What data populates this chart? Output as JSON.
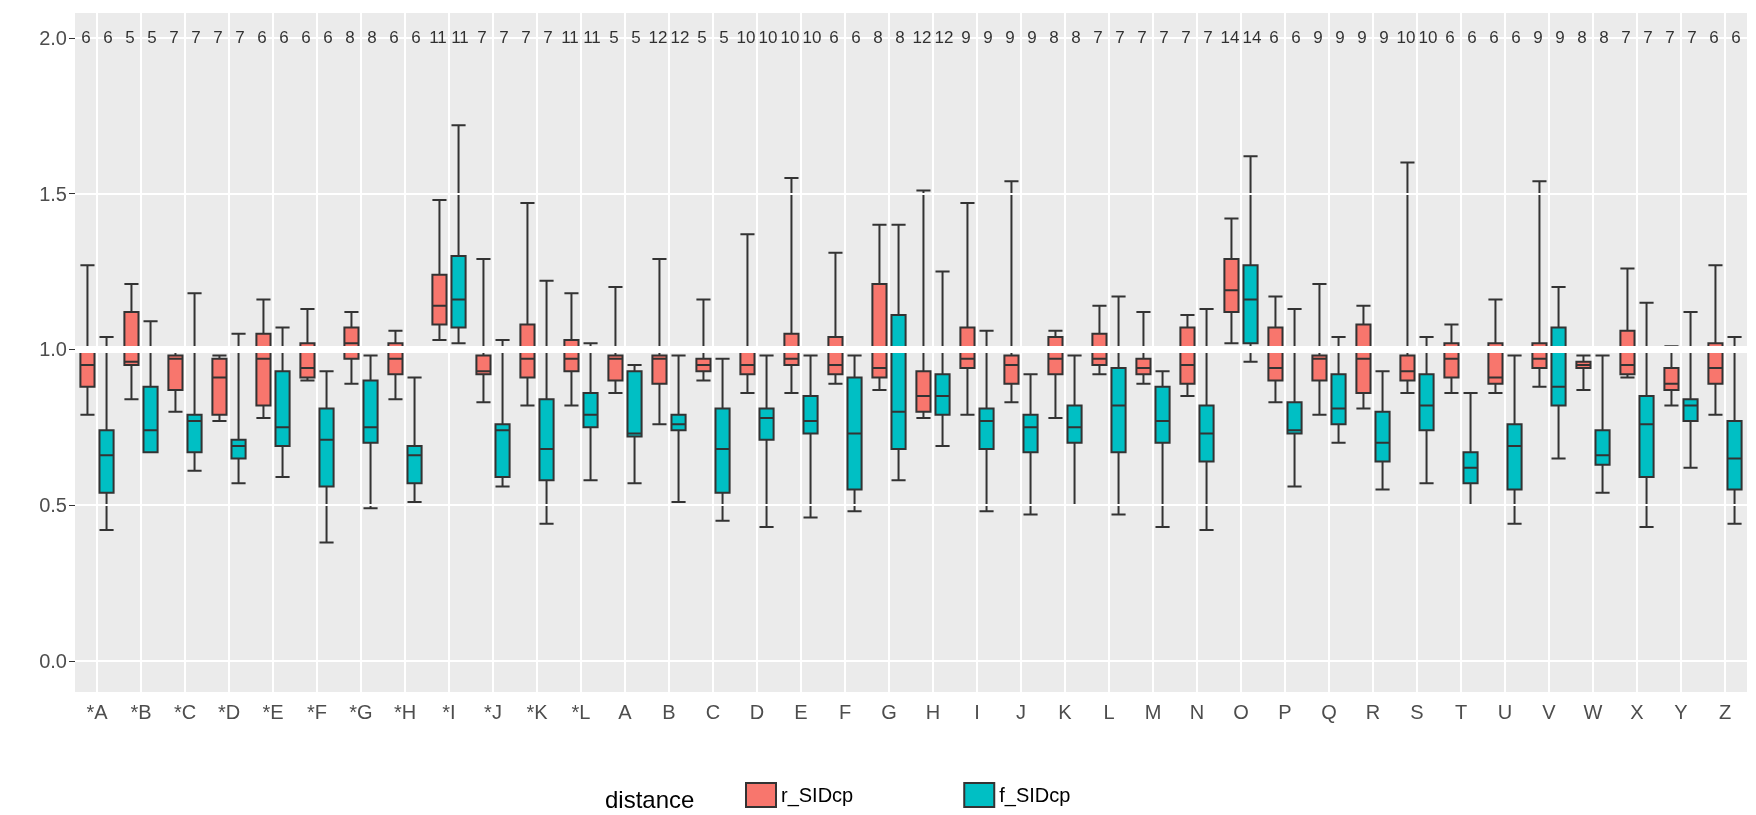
{
  "chart_data": {
    "type": "box",
    "categories": [
      "*A",
      "*B",
      "*C",
      "*D",
      "*E",
      "*F",
      "*G",
      "*H",
      "*I",
      "*J",
      "*K",
      "*L",
      "A",
      "B",
      "C",
      "D",
      "E",
      "F",
      "G",
      "H",
      "I",
      "J",
      "K",
      "L",
      "M",
      "N",
      "O",
      "P",
      "Q",
      "R",
      "S",
      "T",
      "U",
      "V",
      "W",
      "X",
      "Y",
      "Z"
    ],
    "ylim": [
      -0.1,
      2.08
    ],
    "yticks": [
      {
        "value": 0,
        "label": "0.0"
      },
      0.5,
      {
        "value": 1,
        "label": "1.0"
      },
      1.5,
      {
        "value": 2,
        "label": "2.0"
      }
    ],
    "grid": true,
    "legend": "bottom",
    "legend_title": "distance",
    "ref_lines": [
      {
        "axis": "y",
        "value": 1,
        "color": "#ffffff"
      }
    ],
    "series": [
      {
        "name": "r_SIDcp",
        "color": "#f8766d",
        "value_labels": [
          "6",
          "5",
          "7",
          "7",
          "6",
          "6",
          "8",
          "6",
          "11",
          "7",
          "7",
          "11",
          "5",
          "12",
          "5",
          "10",
          "10",
          "6",
          "8",
          "12",
          "9",
          "9",
          "8",
          "7",
          "7",
          "7",
          "14",
          "6",
          "9",
          "9",
          "10",
          "6",
          "6",
          "9",
          "8",
          "7",
          "7",
          "6"
        ],
        "boxes": [
          {
            "low": 0.79,
            "q1": 0.88,
            "median": 0.95,
            "q3": 1.0,
            "high": 1.27
          },
          {
            "low": 0.84,
            "q1": 0.95,
            "median": 0.96,
            "q3": 1.12,
            "high": 1.21
          },
          {
            "low": 0.8,
            "q1": 0.87,
            "median": 0.97,
            "q3": 0.98,
            "high": 1.0
          },
          {
            "low": 0.77,
            "q1": 0.79,
            "median": 0.91,
            "q3": 0.97,
            "high": 0.98
          },
          {
            "low": 0.78,
            "q1": 0.82,
            "median": 0.97,
            "q3": 1.05,
            "high": 1.16
          },
          {
            "low": 0.9,
            "q1": 0.91,
            "median": 0.94,
            "q3": 1.02,
            "high": 1.13
          },
          {
            "low": 0.89,
            "q1": 0.97,
            "median": 1.02,
            "q3": 1.07,
            "high": 1.12
          },
          {
            "low": 0.84,
            "q1": 0.92,
            "median": 0.97,
            "q3": 1.02,
            "high": 1.06
          },
          {
            "low": 1.03,
            "q1": 1.08,
            "median": 1.14,
            "q3": 1.24,
            "high": 1.48
          },
          {
            "low": 0.83,
            "q1": 0.92,
            "median": 0.93,
            "q3": 0.98,
            "high": 1.29
          },
          {
            "low": 0.82,
            "q1": 0.91,
            "median": 0.97,
            "q3": 1.08,
            "high": 1.47
          },
          {
            "low": 0.82,
            "q1": 0.93,
            "median": 0.97,
            "q3": 1.03,
            "high": 1.18
          },
          {
            "low": 0.86,
            "q1": 0.9,
            "median": 0.97,
            "q3": 0.98,
            "high": 1.2
          },
          {
            "low": 0.76,
            "q1": 0.89,
            "median": 0.97,
            "q3": 0.98,
            "high": 1.29
          },
          {
            "low": 0.9,
            "q1": 0.93,
            "median": 0.95,
            "q3": 0.97,
            "high": 1.16
          },
          {
            "low": 0.86,
            "q1": 0.92,
            "median": 0.95,
            "q3": 1.0,
            "high": 1.37
          },
          {
            "low": 0.86,
            "q1": 0.95,
            "median": 0.97,
            "q3": 1.05,
            "high": 1.55
          },
          {
            "low": 0.89,
            "q1": 0.92,
            "median": 0.95,
            "q3": 1.04,
            "high": 1.31
          },
          {
            "low": 0.87,
            "q1": 0.91,
            "median": 0.94,
            "q3": 1.21,
            "high": 1.4
          },
          {
            "low": 0.78,
            "q1": 0.8,
            "median": 0.85,
            "q3": 0.93,
            "high": 1.51
          },
          {
            "low": 0.79,
            "q1": 0.94,
            "median": 0.97,
            "q3": 1.07,
            "high": 1.47
          },
          {
            "low": 0.83,
            "q1": 0.89,
            "median": 0.95,
            "q3": 0.98,
            "high": 1.54
          },
          {
            "low": 0.78,
            "q1": 0.92,
            "median": 0.97,
            "q3": 1.04,
            "high": 1.06
          },
          {
            "low": 0.92,
            "q1": 0.95,
            "median": 0.97,
            "q3": 1.05,
            "high": 1.14
          },
          {
            "low": 0.89,
            "q1": 0.92,
            "median": 0.94,
            "q3": 0.97,
            "high": 1.12
          },
          {
            "low": 0.85,
            "q1": 0.89,
            "median": 0.95,
            "q3": 1.07,
            "high": 1.11
          },
          {
            "low": 1.02,
            "q1": 1.12,
            "median": 1.19,
            "q3": 1.29,
            "high": 1.42
          },
          {
            "low": 0.83,
            "q1": 0.9,
            "median": 0.94,
            "q3": 1.07,
            "high": 1.17
          },
          {
            "low": 0.79,
            "q1": 0.9,
            "median": 0.97,
            "q3": 0.98,
            "high": 1.21
          },
          {
            "low": 0.81,
            "q1": 0.86,
            "median": 0.97,
            "q3": 1.08,
            "high": 1.14
          },
          {
            "low": 0.86,
            "q1": 0.9,
            "median": 0.93,
            "q3": 0.98,
            "high": 1.6
          },
          {
            "low": 0.86,
            "q1": 0.91,
            "median": 0.97,
            "q3": 1.02,
            "high": 1.08
          },
          {
            "low": 0.86,
            "q1": 0.89,
            "median": 0.91,
            "q3": 1.02,
            "high": 1.16
          },
          {
            "low": 0.88,
            "q1": 0.94,
            "median": 0.97,
            "q3": 1.02,
            "high": 1.54
          },
          {
            "low": 0.87,
            "q1": 0.94,
            "median": 0.95,
            "q3": 0.96,
            "high": 0.98
          },
          {
            "low": 0.91,
            "q1": 0.92,
            "median": 0.95,
            "q3": 1.06,
            "high": 1.26
          },
          {
            "low": 0.82,
            "q1": 0.87,
            "median": 0.89,
            "q3": 0.94,
            "high": 1.01
          },
          {
            "low": 0.79,
            "q1": 0.89,
            "median": 0.94,
            "q3": 1.02,
            "high": 1.27
          }
        ]
      },
      {
        "name": "f_SIDcp",
        "color": "#00bfc4",
        "value_labels": [
          "6",
          "5",
          "7",
          "7",
          "6",
          "6",
          "8",
          "6",
          "11",
          "7",
          "7",
          "11",
          "5",
          "12",
          "5",
          "10",
          "10",
          "6",
          "8",
          "12",
          "9",
          "9",
          "8",
          "7",
          "7",
          "7",
          "14",
          "6",
          "9",
          "9",
          "10",
          "6",
          "6",
          "9",
          "8",
          "7",
          "7",
          "6"
        ],
        "boxes": [
          {
            "low": 0.42,
            "q1": 0.54,
            "median": 0.66,
            "q3": 0.74,
            "high": 1.04
          },
          {
            "low": 0.67,
            "q1": 0.67,
            "median": 0.74,
            "q3": 0.88,
            "high": 1.09
          },
          {
            "low": 0.61,
            "q1": 0.67,
            "median": 0.77,
            "q3": 0.79,
            "high": 1.18
          },
          {
            "low": 0.57,
            "q1": 0.65,
            "median": 0.69,
            "q3": 0.71,
            "high": 1.05
          },
          {
            "low": 0.59,
            "q1": 0.69,
            "median": 0.75,
            "q3": 0.93,
            "high": 1.07
          },
          {
            "low": 0.38,
            "q1": 0.56,
            "median": 0.71,
            "q3": 0.81,
            "high": 0.93
          },
          {
            "low": 0.49,
            "q1": 0.7,
            "median": 0.75,
            "q3": 0.9,
            "high": 0.98
          },
          {
            "low": 0.51,
            "q1": 0.57,
            "median": 0.66,
            "q3": 0.69,
            "high": 0.91
          },
          {
            "low": 1.02,
            "q1": 1.07,
            "median": 1.16,
            "q3": 1.3,
            "high": 1.72
          },
          {
            "low": 0.56,
            "q1": 0.59,
            "median": 0.74,
            "q3": 0.76,
            "high": 1.03
          },
          {
            "low": 0.44,
            "q1": 0.58,
            "median": 0.68,
            "q3": 0.84,
            "high": 1.22
          },
          {
            "low": 0.58,
            "q1": 0.75,
            "median": 0.79,
            "q3": 0.86,
            "high": 1.02
          },
          {
            "low": 0.57,
            "q1": 0.72,
            "median": 0.73,
            "q3": 0.93,
            "high": 0.95
          },
          {
            "low": 0.51,
            "q1": 0.74,
            "median": 0.76,
            "q3": 0.79,
            "high": 0.98
          },
          {
            "low": 0.45,
            "q1": 0.54,
            "median": 0.68,
            "q3": 0.81,
            "high": 0.97
          },
          {
            "low": 0.43,
            "q1": 0.71,
            "median": 0.78,
            "q3": 0.81,
            "high": 0.98
          },
          {
            "low": 0.46,
            "q1": 0.73,
            "median": 0.77,
            "q3": 0.85,
            "high": 0.98
          },
          {
            "low": 0.48,
            "q1": 0.55,
            "median": 0.73,
            "q3": 0.91,
            "high": 0.98
          },
          {
            "low": 0.58,
            "q1": 0.68,
            "median": 0.8,
            "q3": 1.11,
            "high": 1.4
          },
          {
            "low": 0.69,
            "q1": 0.79,
            "median": 0.85,
            "q3": 0.92,
            "high": 1.25
          },
          {
            "low": 0.48,
            "q1": 0.68,
            "median": 0.77,
            "q3": 0.81,
            "high": 1.06
          },
          {
            "low": 0.47,
            "q1": 0.67,
            "median": 0.75,
            "q3": 0.79,
            "high": 0.92
          },
          {
            "low": 0.5,
            "q1": 0.7,
            "median": 0.75,
            "q3": 0.82,
            "high": 0.98
          },
          {
            "low": 0.47,
            "q1": 0.67,
            "median": 0.82,
            "q3": 0.94,
            "high": 1.17
          },
          {
            "low": 0.43,
            "q1": 0.7,
            "median": 0.77,
            "q3": 0.88,
            "high": 0.93
          },
          {
            "low": 0.42,
            "q1": 0.64,
            "median": 0.73,
            "q3": 0.82,
            "high": 1.13
          },
          {
            "low": 0.96,
            "q1": 1.02,
            "median": 1.16,
            "q3": 1.27,
            "high": 1.62
          },
          {
            "low": 0.56,
            "q1": 0.73,
            "median": 0.74,
            "q3": 0.83,
            "high": 1.13
          },
          {
            "low": 0.7,
            "q1": 0.76,
            "median": 0.81,
            "q3": 0.92,
            "high": 1.04
          },
          {
            "low": 0.55,
            "q1": 0.64,
            "median": 0.7,
            "q3": 0.8,
            "high": 0.93
          },
          {
            "low": 0.57,
            "q1": 0.74,
            "median": 0.82,
            "q3": 0.92,
            "high": 1.04
          },
          {
            "low": 0.5,
            "q1": 0.57,
            "median": 0.62,
            "q3": 0.67,
            "high": 0.86
          },
          {
            "low": 0.44,
            "q1": 0.55,
            "median": 0.69,
            "q3": 0.76,
            "high": 0.98
          },
          {
            "low": 0.65,
            "q1": 0.82,
            "median": 0.88,
            "q3": 1.07,
            "high": 1.2
          },
          {
            "low": 0.54,
            "q1": 0.63,
            "median": 0.66,
            "q3": 0.74,
            "high": 0.98
          },
          {
            "low": 0.43,
            "q1": 0.59,
            "median": 0.76,
            "q3": 0.85,
            "high": 1.15
          },
          {
            "low": 0.62,
            "q1": 0.77,
            "median": 0.82,
            "q3": 0.84,
            "high": 1.12
          },
          {
            "low": 0.44,
            "q1": 0.55,
            "median": 0.65,
            "q3": 0.77,
            "high": 1.04
          }
        ]
      }
    ]
  }
}
